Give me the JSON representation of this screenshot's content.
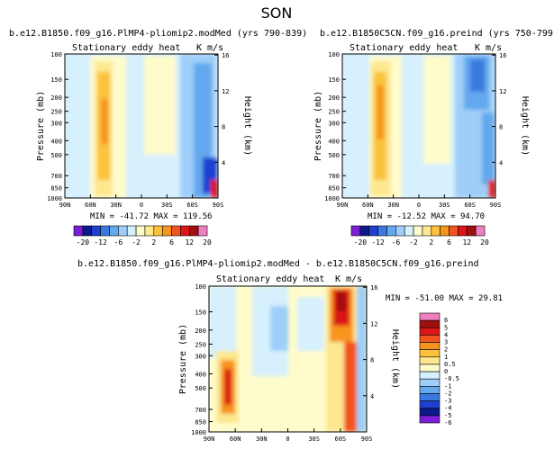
{
  "figure": {
    "season": "SON",
    "colors": {
      "levels_top": [
        "#7a1fd6",
        "#0a1a8a",
        "#1f3fcf",
        "#3a7ae0",
        "#64a8ee",
        "#9fcff8",
        "#d6f0fd",
        "#fffccc",
        "#fde890",
        "#fbc23a",
        "#f7941e",
        "#f2541f",
        "#dc1616",
        "#a01010",
        "#f07fbf"
      ],
      "levels_diff": [
        "#7a1fd6",
        "#0a1a8a",
        "#1f3fcf",
        "#3a7ae0",
        "#64a8ee",
        "#9fcff8",
        "#d6f0fd",
        "#fffccc",
        "#fde890",
        "#fbc23a",
        "#f7941e",
        "#f2541f",
        "#dc1616",
        "#a01010",
        "#f07fbf"
      ]
    }
  },
  "chart_data": [
    {
      "type": "heatmap",
      "title": "b.e12.B1850.f09_g16.PlMP4-pliomip2.modMed (yrs 790-839)",
      "subtitle": "Stationary eddy heat",
      "units": "K m/s",
      "xlabel": "",
      "ylabel": "Pressure (mb)",
      "y2label": "Height (km)",
      "xticks": [
        "90N",
        "60N",
        "30N",
        "0",
        "30S",
        "60S",
        "90S"
      ],
      "yticks": [
        "100",
        "150",
        "200",
        "250",
        "300",
        "400",
        "500",
        "700",
        "850",
        "1000"
      ],
      "y2ticks": [
        "16",
        "12",
        "8",
        "4"
      ],
      "stats": "MIN = -41.72   MAX = 119.56",
      "colorbar_labels": [
        "-20",
        "-12",
        "-6",
        "-2",
        "2",
        "6",
        "12",
        "20"
      ]
    },
    {
      "type": "heatmap",
      "title": "b.e12.B1850C5CN.f09_g16.preind (yrs 750-799)",
      "subtitle": "Stationary eddy heat",
      "units": "K m/s",
      "xlabel": "",
      "ylabel": "Pressure (mb)",
      "y2label": "Height (km)",
      "xticks": [
        "90N",
        "60N",
        "30N",
        "0",
        "30S",
        "60S",
        "90S"
      ],
      "yticks": [
        "100",
        "150",
        "200",
        "250",
        "300",
        "400",
        "500",
        "700",
        "850",
        "1000"
      ],
      "y2ticks": [
        "16",
        "12",
        "8",
        "4"
      ],
      "stats": "MIN = -12.52   MAX = 94.70",
      "colorbar_labels": [
        "-20",
        "-12",
        "-6",
        "-2",
        "2",
        "6",
        "12",
        "20"
      ]
    },
    {
      "type": "heatmap",
      "title": "b.e12.B1850.f09_g16.PlMP4-pliomip2.modMed - b.e12.B1850C5CN.f09_g16.preind",
      "subtitle": "Stationary eddy heat",
      "units": "K m/s",
      "xlabel": "",
      "ylabel": "Pressure (mb)",
      "y2label": "Height (km)",
      "xticks": [
        "90N",
        "60N",
        "30N",
        "0",
        "30S",
        "60S",
        "90S"
      ],
      "yticks": [
        "100",
        "150",
        "200",
        "250",
        "300",
        "400",
        "500",
        "700",
        "850",
        "1000"
      ],
      "y2ticks": [
        "16",
        "12",
        "8",
        "4"
      ],
      "stats": "MIN = -51.00   MAX =  29.81",
      "colorbar_labels": [
        "6",
        "5",
        "4",
        "3",
        "2",
        "1",
        "0.5",
        "0",
        "-0.5",
        "-1",
        "-2",
        "-3",
        "-4",
        "-5",
        "-6"
      ]
    }
  ]
}
